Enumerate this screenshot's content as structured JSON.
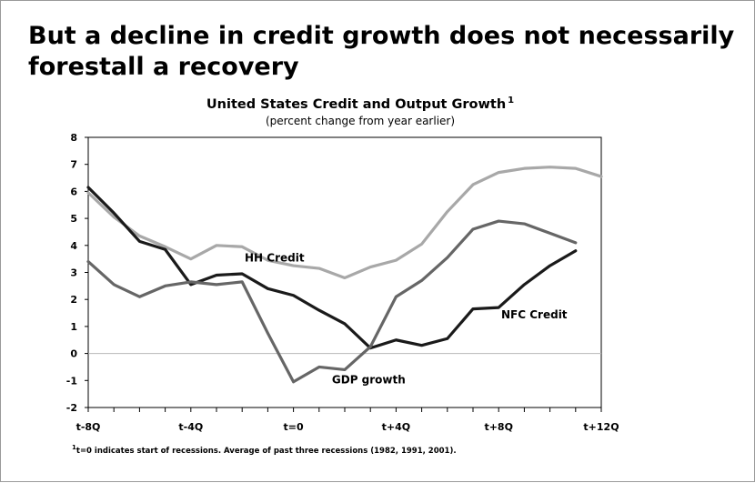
{
  "slide": {
    "headline": "But a decline in credit growth does not necessarily forestall a recovery",
    "footnote_marker": "1",
    "footnote": "t=0 indicates start of recessions. Average of past three recessions (1982, 1991, 2001)."
  },
  "chart_data": {
    "type": "line",
    "title": "United States Credit and Output Growth",
    "title_marker": "1",
    "subtitle": "(percent change from year earlier)",
    "xlabel": "",
    "ylabel": "",
    "x": [
      -8,
      -7,
      -6,
      -5,
      -4,
      -3,
      -2,
      -1,
      0,
      1,
      2,
      3,
      4,
      5,
      6,
      7,
      8,
      9,
      10,
      11,
      12
    ],
    "x_tick_labels": [
      {
        "x": -8,
        "label": "t-8Q"
      },
      {
        "x": -4,
        "label": "t-4Q"
      },
      {
        "x": 0,
        "label": "t=0"
      },
      {
        "x": 4,
        "label": "t+4Q"
      },
      {
        "x": 8,
        "label": "t+8Q"
      },
      {
        "x": 12,
        "label": "t+12Q"
      }
    ],
    "xlim": [
      -8,
      12
    ],
    "ylim": [
      -2,
      8
    ],
    "y_ticks": [
      -2,
      -1,
      0,
      1,
      2,
      3,
      4,
      5,
      6,
      7,
      8
    ],
    "zero_line": true,
    "grid": false,
    "legend": "none",
    "series": [
      {
        "name": "HH Credit",
        "color": "#a8a8a8",
        "label_at": {
          "x": -1.9,
          "y": 3.4
        },
        "values": [
          5.95,
          5.05,
          4.35,
          3.95,
          3.5,
          4.0,
          3.95,
          3.45,
          3.25,
          3.15,
          2.8,
          3.2,
          3.45,
          4.05,
          5.25,
          6.25,
          6.7,
          6.85,
          6.9,
          6.85,
          6.55
        ]
      },
      {
        "name": "NFC Credit",
        "color": "#1a1a1a",
        "label_at": {
          "x": 8.1,
          "y": 1.3
        },
        "values": [
          6.15,
          5.2,
          4.15,
          3.85,
          2.55,
          2.9,
          2.95,
          2.4,
          2.15,
          1.6,
          1.1,
          0.2,
          0.5,
          0.3,
          0.55,
          1.65,
          1.7,
          2.55,
          3.25,
          3.8,
          null
        ]
      },
      {
        "name": "GDP growth",
        "color": "#666666",
        "label_at": {
          "x": 1.5,
          "y": -1.1
        },
        "values": [
          3.4,
          2.55,
          2.1,
          2.5,
          2.65,
          2.55,
          2.65,
          0.75,
          -1.05,
          -0.5,
          -0.6,
          0.25,
          2.1,
          2.7,
          3.55,
          4.6,
          4.9,
          4.8,
          4.45,
          4.1,
          null
        ]
      }
    ]
  }
}
